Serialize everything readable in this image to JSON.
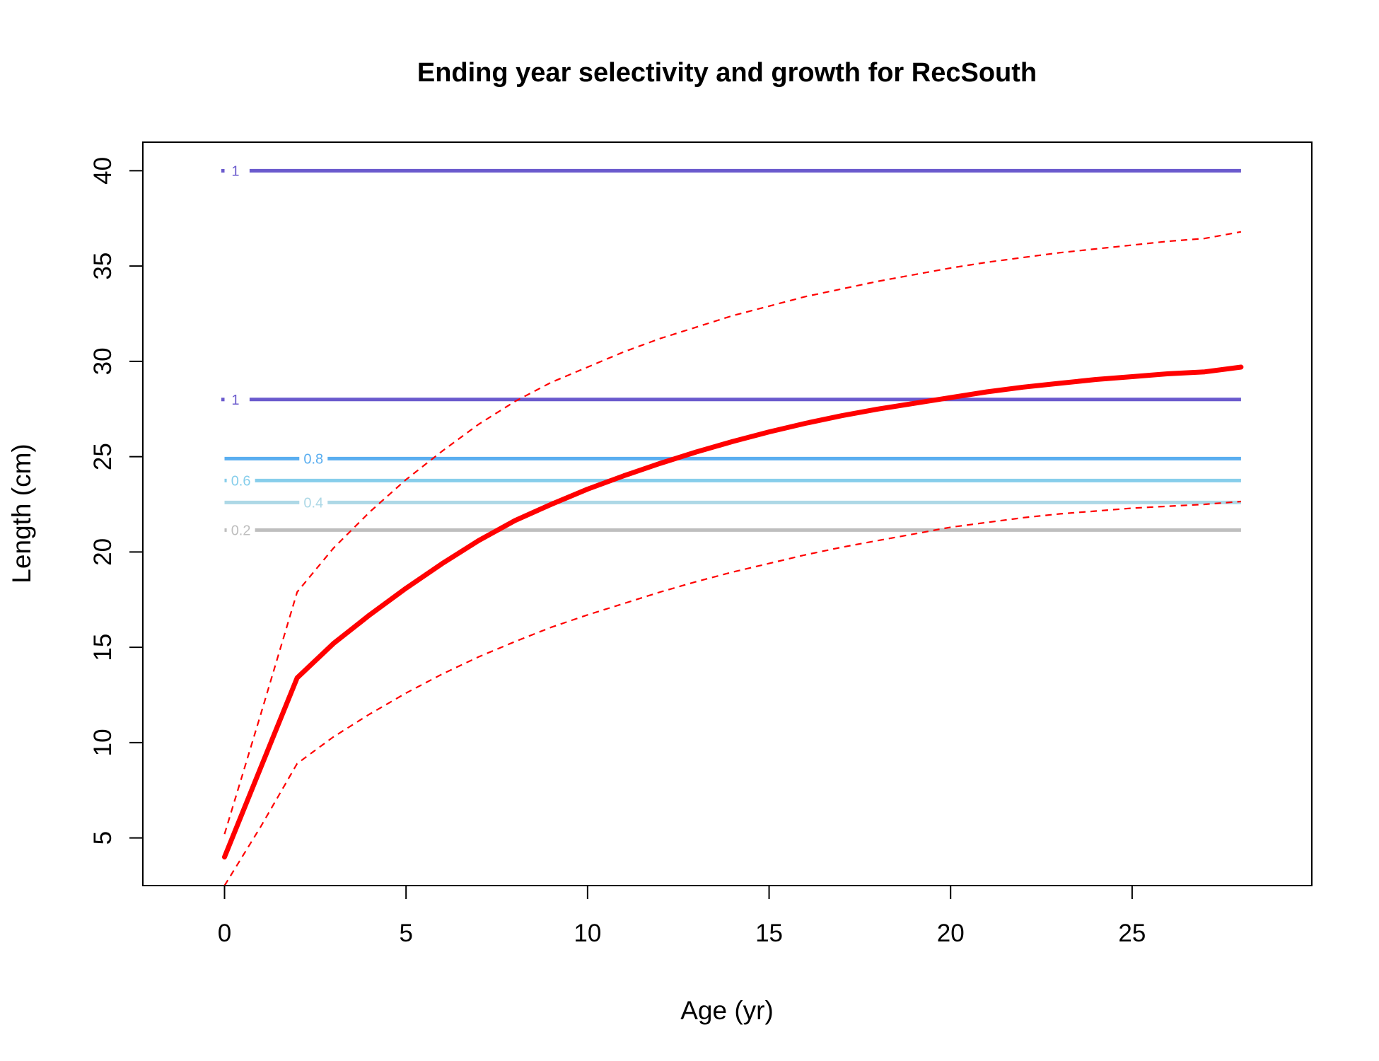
{
  "chart_data": {
    "type": "line",
    "title": "Ending year selectivity and growth for RecSouth",
    "xlabel": "Age (yr)",
    "ylabel": "Length (cm)",
    "xlim": [
      -2.25,
      29.95
    ],
    "ylim": [
      2.5,
      41.5
    ],
    "xticks": [
      0,
      5,
      10,
      15,
      20,
      25
    ],
    "yticks": [
      5,
      10,
      15,
      20,
      25,
      30,
      35,
      40
    ],
    "grid": false,
    "legend": "none",
    "selectivity_contours": [
      {
        "label": "1",
        "y": 40.0,
        "color": "#6A5ACD",
        "label_age": 0.3
      },
      {
        "label": "1",
        "y": 28.0,
        "color": "#6A5ACD",
        "label_age": 0.3
      },
      {
        "label": "0.8",
        "y": 24.9,
        "color": "#5AAEF0",
        "label_age": 2.45
      },
      {
        "label": "0.6",
        "y": 23.75,
        "color": "#87CEEB",
        "label_age": 0.45
      },
      {
        "label": "0.4",
        "y": 22.6,
        "color": "#ADD8E6",
        "label_age": 2.45
      },
      {
        "label": "0.2",
        "y": 21.15,
        "color": "#BEBEBE",
        "label_age": 0.45
      }
    ],
    "series": [
      {
        "role": "mean-length-at-age",
        "color": "#FF0000",
        "style": "solid",
        "x": [
          0,
          1,
          2,
          3,
          4,
          5,
          6,
          7,
          8,
          9,
          10,
          11,
          12,
          13,
          14,
          15,
          16,
          17,
          18,
          19,
          20,
          21,
          22,
          23,
          24,
          25,
          26,
          27,
          28
        ],
        "y": [
          4.0,
          8.7,
          13.4,
          15.2,
          16.7,
          18.1,
          19.4,
          20.6,
          21.65,
          22.5,
          23.3,
          24.0,
          24.65,
          25.25,
          25.8,
          26.3,
          26.75,
          27.15,
          27.5,
          27.8,
          28.1,
          28.4,
          28.65,
          28.85,
          29.05,
          29.2,
          29.35,
          29.45,
          29.7
        ]
      },
      {
        "role": "upper-interval",
        "color": "#FF0000",
        "style": "dashed",
        "x": [
          0,
          1,
          2,
          3,
          4,
          5,
          6,
          7,
          8,
          9,
          10,
          11,
          12,
          13,
          14,
          15,
          16,
          17,
          18,
          19,
          20,
          21,
          22,
          23,
          24,
          25,
          26,
          27,
          28
        ],
        "y": [
          5.2,
          11.5,
          17.9,
          20.2,
          22.1,
          23.8,
          25.3,
          26.7,
          27.9,
          28.9,
          29.7,
          30.5,
          31.2,
          31.8,
          32.4,
          32.9,
          33.4,
          33.8,
          34.2,
          34.55,
          34.9,
          35.2,
          35.45,
          35.7,
          35.9,
          36.1,
          36.3,
          36.45,
          36.8
        ]
      },
      {
        "role": "lower-interval",
        "color": "#FF0000",
        "style": "dashed",
        "x": [
          0,
          1,
          2,
          3,
          4,
          5,
          6,
          7,
          8,
          9,
          10,
          11,
          12,
          13,
          14,
          15,
          16,
          17,
          18,
          19,
          20,
          21,
          22,
          23,
          24,
          25,
          26,
          27,
          28
        ],
        "y": [
          2.5,
          5.6,
          8.9,
          10.3,
          11.5,
          12.6,
          13.6,
          14.5,
          15.3,
          16.05,
          16.7,
          17.3,
          17.9,
          18.45,
          18.95,
          19.4,
          19.85,
          20.25,
          20.6,
          20.95,
          21.3,
          21.55,
          21.8,
          22.0,
          22.15,
          22.3,
          22.4,
          22.5,
          22.65
        ]
      }
    ]
  }
}
